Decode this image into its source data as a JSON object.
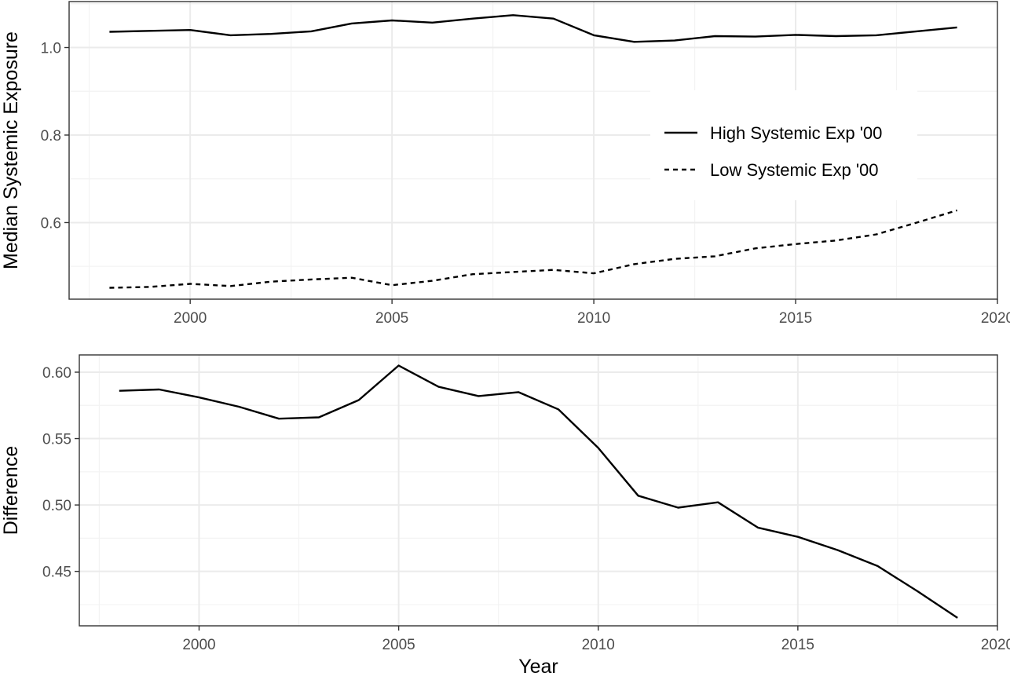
{
  "chart_data": [
    {
      "type": "line",
      "title": "",
      "xlabel": "",
      "ylabel": "Median Systemic Exposure",
      "xlim": [
        1997,
        2020
      ],
      "ylim": [
        0.425,
        1.105
      ],
      "x_ticks": [
        "2000",
        "2005",
        "2010",
        "2015",
        "2020"
      ],
      "y_ticks": [
        "0.6",
        "0.8",
        "1.0"
      ],
      "grid": true,
      "legend_position": "right",
      "x": [
        1998,
        1999,
        2000,
        2001,
        2002,
        2003,
        2004,
        2005,
        2006,
        2007,
        2008,
        2009,
        2010,
        2011,
        2012,
        2013,
        2014,
        2015,
        2016,
        2017,
        2018,
        2019
      ],
      "series": [
        {
          "name": "High Systemic Exp '00",
          "style": "solid",
          "values": [
            1.036,
            1.038,
            1.04,
            1.028,
            1.031,
            1.037,
            1.055,
            1.062,
            1.057,
            1.066,
            1.074,
            1.066,
            1.028,
            1.013,
            1.016,
            1.026,
            1.025,
            1.029,
            1.026,
            1.028,
            1.037,
            1.046
          ]
        },
        {
          "name": "Low Systemic Exp '00",
          "style": "dashed",
          "values": [
            0.451,
            0.453,
            0.46,
            0.455,
            0.465,
            0.47,
            0.474,
            0.457,
            0.467,
            0.482,
            0.487,
            0.492,
            0.484,
            0.505,
            0.517,
            0.523,
            0.541,
            0.551,
            0.559,
            0.573,
            0.6,
            0.628
          ]
        }
      ]
    },
    {
      "type": "line",
      "title": "",
      "xlabel": "Year",
      "ylabel": "Difference",
      "xlim": [
        1997,
        2020
      ],
      "ylim": [
        0.409,
        0.613
      ],
      "x_ticks": [
        "2000",
        "2005",
        "2010",
        "2015",
        "2020"
      ],
      "y_ticks": [
        "0.45",
        "0.50",
        "0.55",
        "0.60"
      ],
      "grid": true,
      "x": [
        1998,
        1999,
        2000,
        2001,
        2002,
        2003,
        2004,
        2005,
        2006,
        2007,
        2008,
        2009,
        2010,
        2011,
        2012,
        2013,
        2014,
        2015,
        2016,
        2017,
        2018,
        2019
      ],
      "series": [
        {
          "name": "",
          "style": "solid",
          "values": [
            0.586,
            0.587,
            0.581,
            0.574,
            0.565,
            0.566,
            0.579,
            0.605,
            0.589,
            0.582,
            0.585,
            0.572,
            0.543,
            0.507,
            0.498,
            0.502,
            0.483,
            0.476,
            0.466,
            0.454,
            0.435,
            0.415
          ]
        }
      ]
    }
  ]
}
